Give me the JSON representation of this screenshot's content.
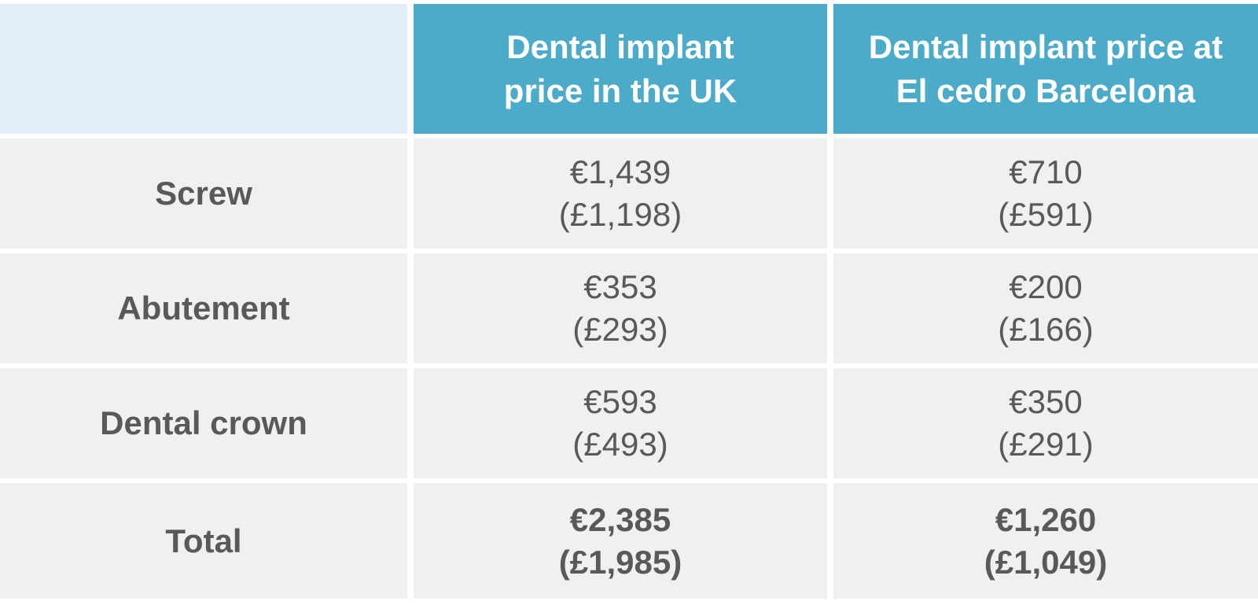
{
  "table": {
    "header": {
      "corner": "",
      "col_uk": {
        "line1": "Dental implant",
        "line2": "price in the UK"
      },
      "col_bcn": {
        "line1": "Dental implant price at",
        "line2": "El cedro Barcelona"
      }
    },
    "rows": [
      {
        "label": "Screw",
        "uk": {
          "eur": "€1,439",
          "gbp": "(£1,198)"
        },
        "bcn": {
          "eur": "€710",
          "gbp": "(£591)"
        }
      },
      {
        "label": "Abutement",
        "uk": {
          "eur": "€353",
          "gbp": "(£293)"
        },
        "bcn": {
          "eur": "€200",
          "gbp": "(£166)"
        }
      },
      {
        "label": "Dental crown",
        "uk": {
          "eur": "€593",
          "gbp": "(£493)"
        },
        "bcn": {
          "eur": "€350",
          "gbp": "(£291)"
        }
      },
      {
        "label": "Total",
        "uk": {
          "eur": "€2,385",
          "gbp": "(£1,985)"
        },
        "bcn": {
          "eur": "€1,260",
          "gbp": "(£1,049)"
        }
      }
    ]
  },
  "colors": {
    "header_teal": "#4babc8",
    "header_corner_light_blue": "#e0eef5",
    "cell_gray": "#f0f0f1",
    "text_dark_gray": "#58595b",
    "header_text": "#ffffff",
    "gutter_white": "#ffffff"
  },
  "chart_data": {
    "type": "table",
    "title": "Dental implant price comparison",
    "columns": [
      "",
      "Dental implant price in the UK",
      "Dental implant price at El cedro Barcelona"
    ],
    "rows": [
      [
        "Screw",
        "€1,439 (£1,198)",
        "€710 (£591)"
      ],
      [
        "Abutement",
        "€353 (£293)",
        "€200 (£166)"
      ],
      [
        "Dental crown",
        "€593 (£493)",
        "€350 (£291)"
      ],
      [
        "Total",
        "€2,385 (£1,985)",
        "€1,260 (£1,049)"
      ]
    ],
    "values_eur": {
      "uk": [
        1439,
        353,
        593,
        2385
      ],
      "el_cedro_barcelona": [
        710,
        200,
        350,
        1260
      ]
    },
    "values_gbp": {
      "uk": [
        1198,
        293,
        493,
        1985
      ],
      "el_cedro_barcelona": [
        591,
        166,
        291,
        1049
      ]
    },
    "layout": "3-column comparison table, header row teal, corner cell light blue, body cells light gray, totals bold"
  }
}
